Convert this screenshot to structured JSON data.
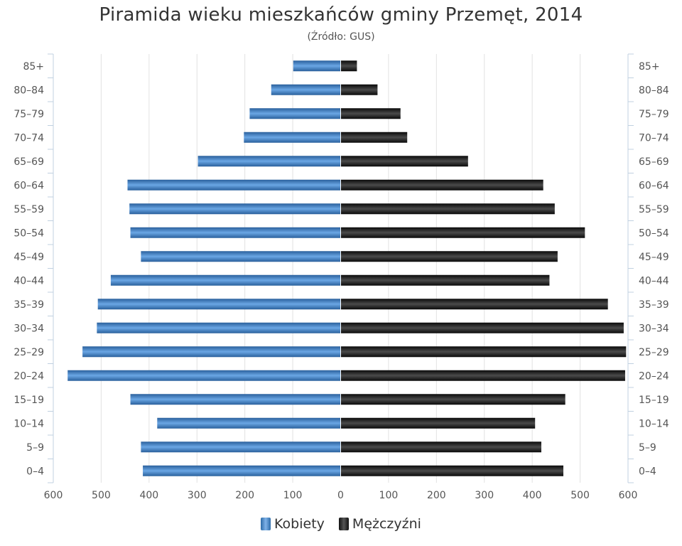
{
  "chart_data": {
    "type": "bar",
    "orientation": "horizontal",
    "layout": "population-pyramid",
    "title": "Piramida wieku mieszkańców gminy Przemęt, 2014",
    "subtitle": "(Źródło: GUS)",
    "categories": [
      "85+",
      "80–84",
      "75–79",
      "70–74",
      "65–69",
      "60–64",
      "55–59",
      "50–54",
      "45–49",
      "40–44",
      "35–39",
      "30–34",
      "25–29",
      "20–24",
      "15–19",
      "10–14",
      "5–9",
      "0–4"
    ],
    "series": [
      {
        "name": "Kobiety",
        "side": "left",
        "color": "#3d7dc4",
        "values": [
          99,
          145,
          190,
          202,
          298,
          445,
          441,
          439,
          417,
          480,
          507,
          509,
          539,
          570,
          439,
          383,
          417,
          413
        ]
      },
      {
        "name": "Mężczyźni",
        "side": "right",
        "color": "#1a1a1a",
        "values": [
          34,
          77,
          125,
          139,
          266,
          423,
          447,
          510,
          453,
          436,
          558,
          591,
          596,
          594,
          469,
          406,
          419,
          465
        ]
      }
    ],
    "xlim": [
      -600,
      600
    ],
    "xticks": [
      -600,
      -500,
      -400,
      -300,
      -200,
      -100,
      0,
      100,
      200,
      300,
      400,
      500,
      600
    ],
    "xtick_labels": [
      "600",
      "500",
      "400",
      "300",
      "200",
      "100",
      "0",
      "100",
      "200",
      "300",
      "400",
      "500",
      "600"
    ],
    "ylabels_both_sides": true,
    "grid": "vertical",
    "legend": "bottom-center"
  }
}
